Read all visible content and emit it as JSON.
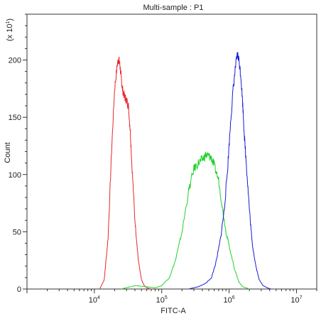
{
  "chart_data": {
    "type": "line",
    "title": "Multi-sample : P1",
    "xlabel": "FITC-A",
    "ylabel": "Count",
    "y_multiplier_label": "(x 10",
    "y_multiplier_exp": "1",
    "x_scale": "log",
    "xlim": [
      1000,
      20000000
    ],
    "ylim": [
      0,
      240
    ],
    "y_ticks": [
      0,
      50,
      100,
      150,
      200
    ],
    "x_tick_decades": [
      {
        "value": 10000,
        "base": "10",
        "exp": "4"
      },
      {
        "value": 100000,
        "base": "10",
        "exp": "5"
      },
      {
        "value": 1000000,
        "base": "10",
        "exp": "6"
      },
      {
        "value": 10000000,
        "base": "10",
        "exp": "7"
      }
    ],
    "grid": false,
    "legend": "none",
    "series": [
      {
        "color": "#e8262b",
        "x": [
          12000,
          14000,
          16000,
          18000,
          20000,
          22000,
          23000,
          24000,
          25000,
          26000,
          28000,
          30000,
          32000,
          34000,
          36000,
          40000,
          45000,
          50000,
          55000,
          60000,
          70000
        ],
        "y": [
          0,
          8,
          45,
          120,
          175,
          197,
          201,
          195,
          185,
          175,
          168,
          165,
          160,
          140,
          110,
          60,
          25,
          8,
          3,
          1,
          0
        ]
      },
      {
        "color": "#1fd12a",
        "x": [
          25000,
          40000,
          60000,
          80000,
          100000,
          130000,
          160000,
          200000,
          250000,
          300000,
          350000,
          400000,
          450000,
          500000,
          550000,
          600000,
          700000,
          800000,
          900000,
          1000000,
          1200000,
          1400000,
          1600000,
          1800000,
          2000000
        ],
        "y": [
          0,
          3,
          2,
          1,
          3,
          10,
          25,
          50,
          85,
          105,
          110,
          113,
          117,
          116,
          114,
          108,
          95,
          70,
          50,
          38,
          18,
          6,
          2,
          1,
          0
        ]
      },
      {
        "color": "#1a1ad6",
        "x": [
          250000,
          350000,
          450000,
          550000,
          650000,
          750000,
          850000,
          950000,
          1050000,
          1150000,
          1250000,
          1330000,
          1400000,
          1500000,
          1600000,
          1700000,
          1850000,
          2000000,
          2200000,
          2500000,
          2800000,
          3200000,
          3700000,
          4200000
        ],
        "y": [
          0,
          2,
          5,
          10,
          25,
          45,
          70,
          105,
          145,
          175,
          195,
          205,
          200,
          185,
          160,
          130,
          100,
          70,
          40,
          20,
          8,
          3,
          1,
          0
        ]
      }
    ]
  }
}
